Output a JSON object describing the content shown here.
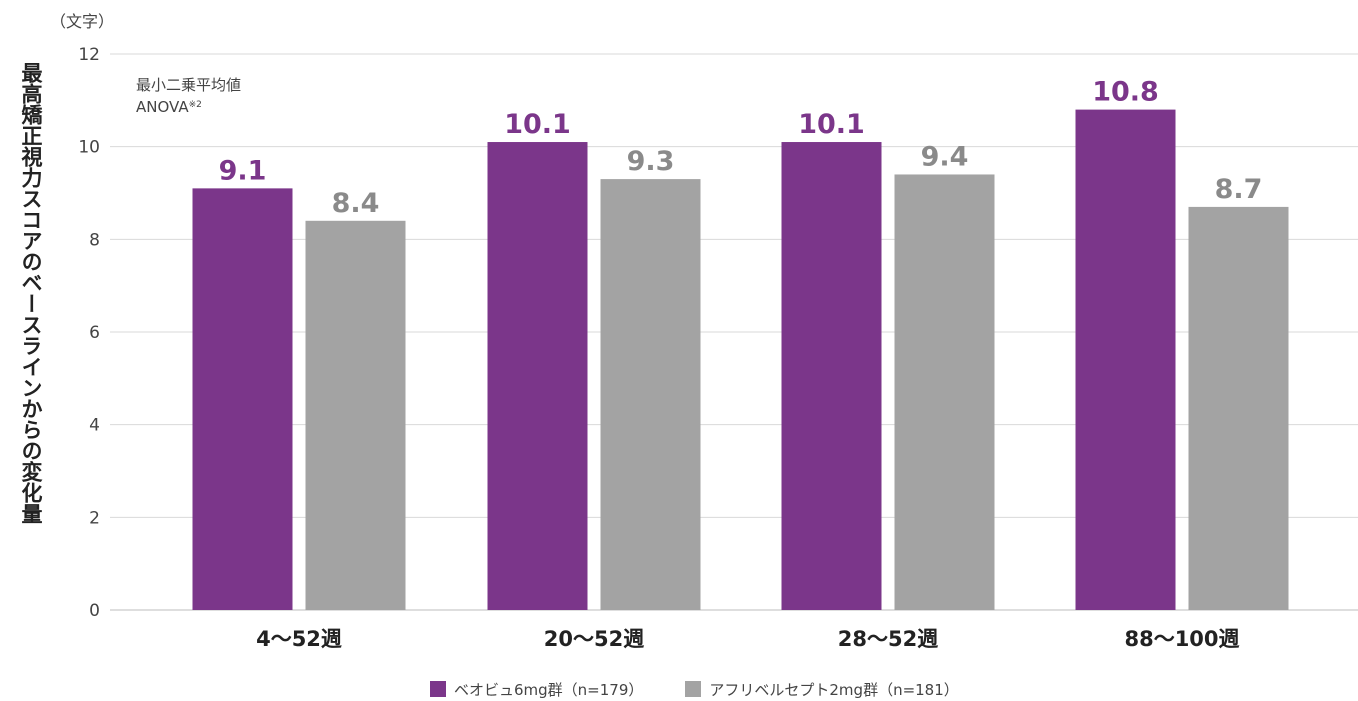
{
  "chart_data": {
    "type": "bar",
    "title": "",
    "unit_label": "（文字）",
    "ylabel": "最高矯正視力スコアのベースラインからの変化量",
    "xlabel": "",
    "note_line1": "最小二乗平均値",
    "note_line2": "ANOVA",
    "note_sup": "※2",
    "categories": [
      "4〜52週",
      "20〜52週",
      "28〜52週",
      "88〜100週"
    ],
    "series": [
      {
        "name": "ベオビュ6mg群（n=179）",
        "color": "#7b368a",
        "label_color": "#7b368a",
        "values": [
          9.1,
          10.1,
          10.1,
          10.8
        ],
        "value_labels": [
          "9.1",
          "10.1",
          "10.1",
          "10.8"
        ]
      },
      {
        "name": "アフリベルセプト2mg群（n=181）",
        "color": "#a3a3a3",
        "label_color": "#8a8a8a",
        "values": [
          8.4,
          9.3,
          9.4,
          8.7
        ],
        "value_labels": [
          "8.4",
          "9.3",
          "9.4",
          "8.7"
        ]
      }
    ],
    "ylim": [
      0,
      12
    ],
    "yticks": [
      "0",
      "2",
      "4",
      "6",
      "8",
      "10",
      "12"
    ],
    "grid": true,
    "legend_position": "bottom"
  }
}
